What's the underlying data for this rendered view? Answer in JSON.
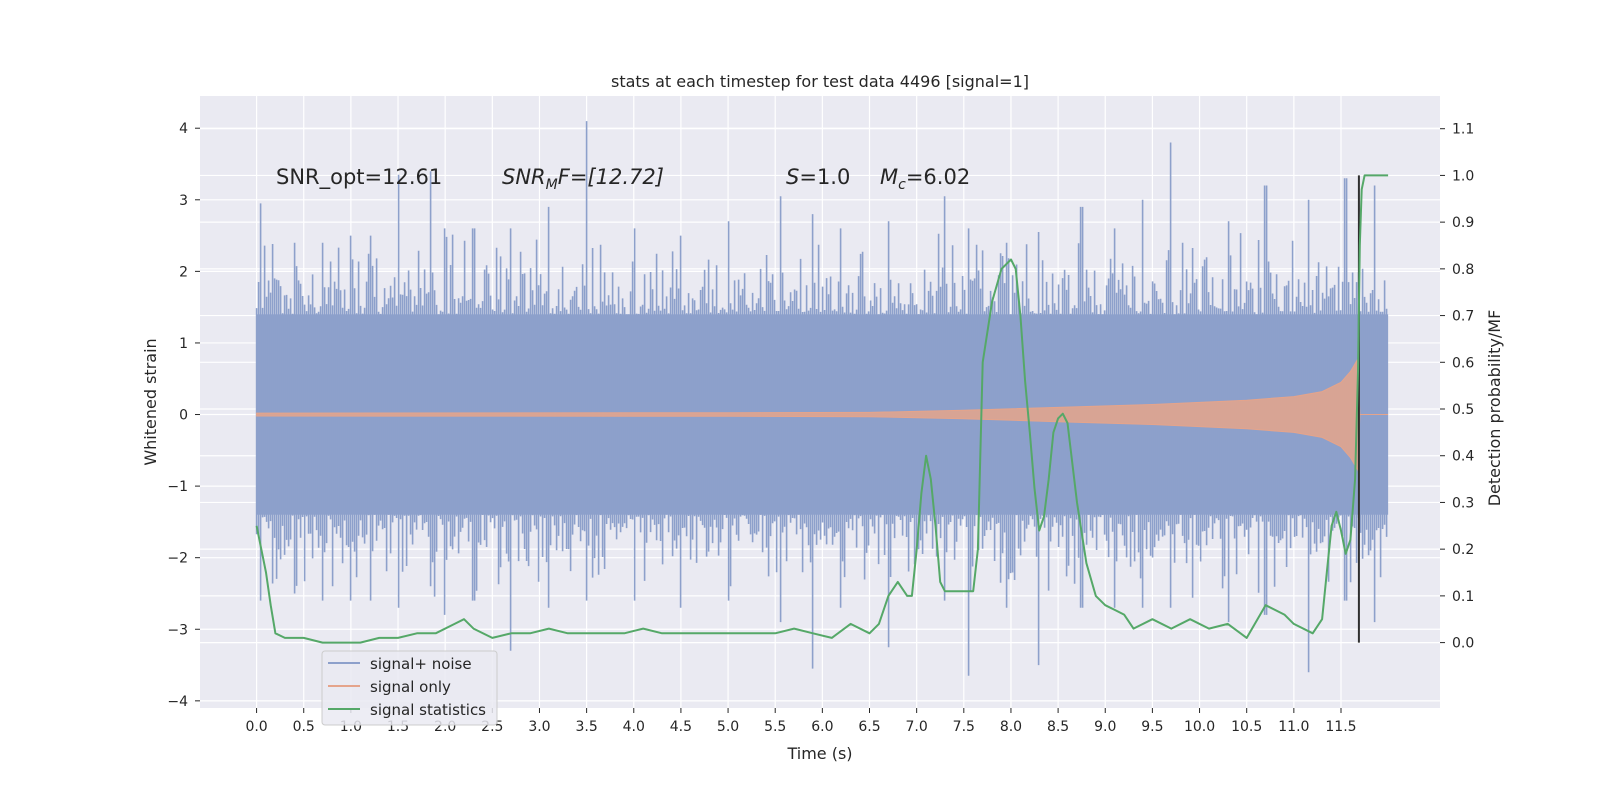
{
  "chart_data": {
    "type": "line",
    "title": "stats at each timestep for test data 4496 [signal=1]",
    "xlabel": "Time (s)",
    "ylabel_left": "Whitened strain",
    "ylabel_right": "Detection probability/MF",
    "xlim": [
      -0.6,
      12.55
    ],
    "ylim_left": [
      -4.1,
      4.45
    ],
    "ylim_right": [
      -0.14,
      1.17
    ],
    "x_ticks": [
      "0.0",
      "0.5",
      "1.0",
      "1.5",
      "2.0",
      "2.5",
      "3.0",
      "3.5",
      "4.0",
      "4.5",
      "5.0",
      "5.5",
      "6.0",
      "6.5",
      "7.0",
      "7.5",
      "8.0",
      "8.5",
      "9.0",
      "9.5",
      "10.0",
      "10.5",
      "11.0",
      "11.5"
    ],
    "y_ticks_left": [
      "4",
      "3",
      "2",
      "1",
      "0",
      "−1",
      "−2",
      "−3",
      "−4"
    ],
    "y_ticks_right": [
      "1.1",
      "1.0",
      "0.9",
      "0.8",
      "0.7",
      "0.6",
      "0.5",
      "0.4",
      "0.3",
      "0.2",
      "0.1",
      "0.0"
    ],
    "grid": true,
    "legend_position": "lower-left",
    "annotations": {
      "snr_opt": "SNR_opt=12.61",
      "snr_mf_sym": "SNR",
      "snr_mf_sub": "M",
      "snr_mf_val": "F=[12.72]",
      "s_sym": "S",
      "s_val": "=1.0",
      "mc_sym": "M",
      "mc_sub": "c",
      "mc_val": "=6.02"
    },
    "marker_line_x": 11.69,
    "series": [
      {
        "name": "signal+ noise",
        "color": "#8da0cb",
        "t_range": [
          0.0,
          12.0
        ],
        "envelope_peaks": [
          [
            0.05,
            2.95,
            -2.6
          ],
          [
            0.4,
            2.4,
            -2.5
          ],
          [
            0.7,
            2.4,
            -2.6
          ],
          [
            1.0,
            2.5,
            -2.6
          ],
          [
            1.2,
            2.5,
            -2.6
          ],
          [
            1.5,
            3.35,
            -2.7
          ],
          [
            1.85,
            3.4,
            -2.4
          ],
          [
            2.0,
            2.6,
            -2.8
          ],
          [
            2.3,
            2.6,
            -2.6
          ],
          [
            2.7,
            2.6,
            -3.3
          ],
          [
            3.1,
            2.9,
            -2.7
          ],
          [
            3.5,
            4.1,
            -2.6
          ],
          [
            4.0,
            2.6,
            -2.6
          ],
          [
            4.5,
            2.5,
            -2.7
          ],
          [
            5.0,
            2.7,
            -2.6
          ],
          [
            5.55,
            3.05,
            -2.9
          ],
          [
            5.9,
            2.8,
            -3.55
          ],
          [
            6.2,
            2.6,
            -2.7
          ],
          [
            6.7,
            2.7,
            -3.25
          ],
          [
            7.3,
            3.05,
            -2.6
          ],
          [
            7.55,
            2.6,
            -3.65
          ],
          [
            7.95,
            2.4,
            -2.7
          ],
          [
            8.3,
            2.55,
            -3.5
          ],
          [
            8.75,
            2.9,
            -2.7
          ],
          [
            9.1,
            2.6,
            -2.7
          ],
          [
            9.4,
            3.0,
            -2.7
          ],
          [
            9.7,
            3.8,
            -2.7
          ],
          [
            10.3,
            2.7,
            -2.9
          ],
          [
            10.7,
            3.2,
            -2.8
          ],
          [
            11.15,
            3.0,
            -3.6
          ],
          [
            11.55,
            3.3,
            -2.6
          ],
          [
            11.85,
            3.2,
            -2.9
          ]
        ],
        "band_abs": 1.4
      },
      {
        "name": "signal only",
        "color": "#e5a48b",
        "t_range": [
          0.0,
          12.0
        ],
        "amplitude_points": [
          [
            0.0,
            0.02
          ],
          [
            5.0,
            0.025
          ],
          [
            6.5,
            0.03
          ],
          [
            7.5,
            0.06
          ],
          [
            8.5,
            0.1
          ],
          [
            9.5,
            0.14
          ],
          [
            10.5,
            0.2
          ],
          [
            11.0,
            0.25
          ],
          [
            11.3,
            0.32
          ],
          [
            11.5,
            0.45
          ],
          [
            11.6,
            0.6
          ],
          [
            11.68,
            0.78
          ],
          [
            11.7,
            0.0
          ],
          [
            12.0,
            0.0
          ]
        ]
      },
      {
        "name": "signal statistics",
        "color": "#55a868",
        "axis": "right",
        "x": [
          0.0,
          0.05,
          0.1,
          0.15,
          0.2,
          0.3,
          0.5,
          0.7,
          0.9,
          1.1,
          1.3,
          1.5,
          1.7,
          1.9,
          2.1,
          2.2,
          2.3,
          2.5,
          2.7,
          2.9,
          3.1,
          3.3,
          3.5,
          3.7,
          3.9,
          4.1,
          4.3,
          4.5,
          4.7,
          4.9,
          5.1,
          5.3,
          5.5,
          5.7,
          5.9,
          6.1,
          6.3,
          6.5,
          6.6,
          6.7,
          6.8,
          6.9,
          6.95,
          7.0,
          7.05,
          7.1,
          7.15,
          7.2,
          7.25,
          7.3,
          7.4,
          7.5,
          7.6,
          7.65,
          7.7,
          7.8,
          7.9,
          8.0,
          8.05,
          8.1,
          8.15,
          8.2,
          8.25,
          8.3,
          8.35,
          8.4,
          8.45,
          8.5,
          8.55,
          8.6,
          8.7,
          8.8,
          8.9,
          9.0,
          9.1,
          9.2,
          9.3,
          9.5,
          9.7,
          9.9,
          10.1,
          10.3,
          10.5,
          10.7,
          10.9,
          11.0,
          11.2,
          11.3,
          11.35,
          11.4,
          11.45,
          11.5,
          11.55,
          11.6,
          11.65,
          11.68,
          11.7,
          11.72,
          11.75,
          11.8,
          11.85,
          11.9,
          12.0
        ],
        "y": [
          0.25,
          0.2,
          0.15,
          0.08,
          0.02,
          0.01,
          0.01,
          0.0,
          0.0,
          0.0,
          0.01,
          0.01,
          0.02,
          0.02,
          0.04,
          0.05,
          0.03,
          0.01,
          0.02,
          0.02,
          0.03,
          0.02,
          0.02,
          0.02,
          0.02,
          0.03,
          0.02,
          0.02,
          0.02,
          0.02,
          0.02,
          0.02,
          0.02,
          0.03,
          0.02,
          0.01,
          0.04,
          0.02,
          0.04,
          0.1,
          0.13,
          0.1,
          0.1,
          0.2,
          0.32,
          0.4,
          0.35,
          0.25,
          0.13,
          0.11,
          0.11,
          0.11,
          0.11,
          0.2,
          0.6,
          0.73,
          0.8,
          0.82,
          0.8,
          0.7,
          0.56,
          0.45,
          0.33,
          0.24,
          0.27,
          0.35,
          0.45,
          0.48,
          0.49,
          0.47,
          0.3,
          0.17,
          0.1,
          0.08,
          0.07,
          0.06,
          0.03,
          0.05,
          0.03,
          0.05,
          0.03,
          0.04,
          0.01,
          0.08,
          0.06,
          0.04,
          0.02,
          0.05,
          0.15,
          0.25,
          0.28,
          0.24,
          0.19,
          0.22,
          0.35,
          0.58,
          0.85,
          0.97,
          1.0,
          1.0,
          1.0,
          1.0,
          1.0
        ]
      }
    ]
  }
}
